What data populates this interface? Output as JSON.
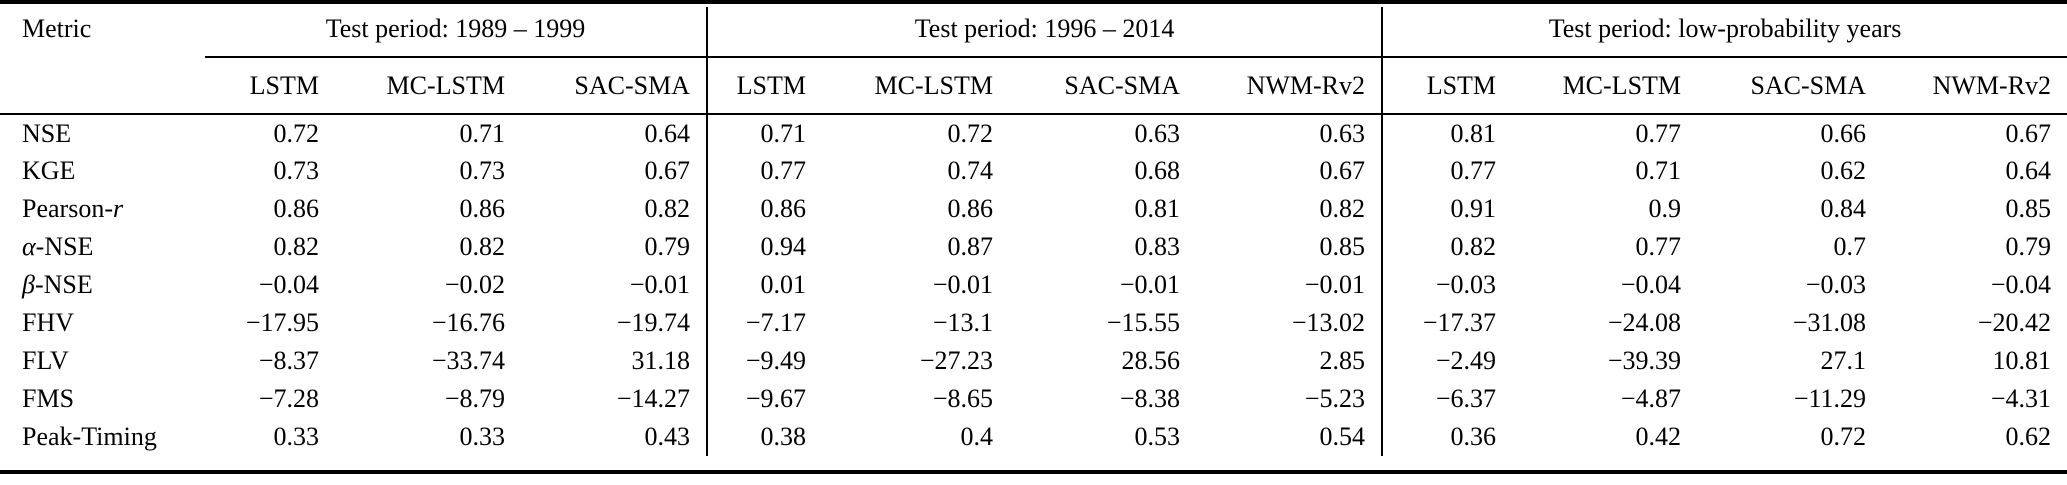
{
  "chart_data": {
    "type": "table",
    "metric_header": "Metric",
    "groups": [
      {
        "title": "Test period: 1989 – 1999",
        "models": [
          "LSTM",
          "MC-LSTM",
          "SAC-SMA"
        ]
      },
      {
        "title": "Test period: 1996 – 2014",
        "models": [
          "LSTM",
          "MC-LSTM",
          "SAC-SMA",
          "NWM-Rv2"
        ]
      },
      {
        "title": "Test period: low-probability years",
        "models": [
          "LSTM",
          "MC-LSTM",
          "SAC-SMA",
          "NWM-Rv2"
        ]
      }
    ],
    "rows": [
      {
        "metric": {
          "pre": "NSE",
          "it": "",
          "post": ""
        },
        "values": [
          "0.72",
          "0.71",
          "0.64",
          "0.71",
          "0.72",
          "0.63",
          "0.63",
          "0.81",
          "0.77",
          "0.66",
          "0.67"
        ]
      },
      {
        "metric": {
          "pre": "KGE",
          "it": "",
          "post": ""
        },
        "values": [
          "0.73",
          "0.73",
          "0.67",
          "0.77",
          "0.74",
          "0.68",
          "0.67",
          "0.77",
          "0.71",
          "0.62",
          "0.64"
        ]
      },
      {
        "metric": {
          "pre": "Pearson-",
          "it": "r",
          "post": ""
        },
        "values": [
          "0.86",
          "0.86",
          "0.82",
          "0.86",
          "0.86",
          "0.81",
          "0.82",
          "0.91",
          "0.9",
          "0.84",
          "0.85"
        ]
      },
      {
        "metric": {
          "pre": "",
          "it": "α",
          "post": "-NSE"
        },
        "values": [
          "0.82",
          "0.82",
          "0.79",
          "0.94",
          "0.87",
          "0.83",
          "0.85",
          "0.82",
          "0.77",
          "0.7",
          "0.79"
        ]
      },
      {
        "metric": {
          "pre": "",
          "it": "β",
          "post": "-NSE"
        },
        "values": [
          "−0.04",
          "−0.02",
          "−0.01",
          "0.01",
          "−0.01",
          "−0.01",
          "−0.01",
          "−0.03",
          "−0.04",
          "−0.03",
          "−0.04"
        ]
      },
      {
        "metric": {
          "pre": "FHV",
          "it": "",
          "post": ""
        },
        "values": [
          "−17.95",
          "−16.76",
          "−19.74",
          "−7.17",
          "−13.1",
          "−15.55",
          "−13.02",
          "−17.37",
          "−24.08",
          "−31.08",
          "−20.42"
        ]
      },
      {
        "metric": {
          "pre": "FLV",
          "it": "",
          "post": ""
        },
        "values": [
          "−8.37",
          "−33.74",
          "31.18",
          "−9.49",
          "−27.23",
          "28.56",
          "2.85",
          "−2.49",
          "−39.39",
          "27.1",
          "10.81"
        ]
      },
      {
        "metric": {
          "pre": "FMS",
          "it": "",
          "post": ""
        },
        "values": [
          "−7.28",
          "−8.79",
          "−14.27",
          "−9.67",
          "−8.65",
          "−8.38",
          "−5.23",
          "−6.37",
          "−4.87",
          "−11.29",
          "−4.31"
        ]
      },
      {
        "metric": {
          "pre": "Peak-Timing",
          "it": "",
          "post": ""
        },
        "values": [
          "0.33",
          "0.33",
          "0.43",
          "0.38",
          "0.4",
          "0.53",
          "0.54",
          "0.36",
          "0.42",
          "0.72",
          "0.62"
        ]
      }
    ]
  }
}
